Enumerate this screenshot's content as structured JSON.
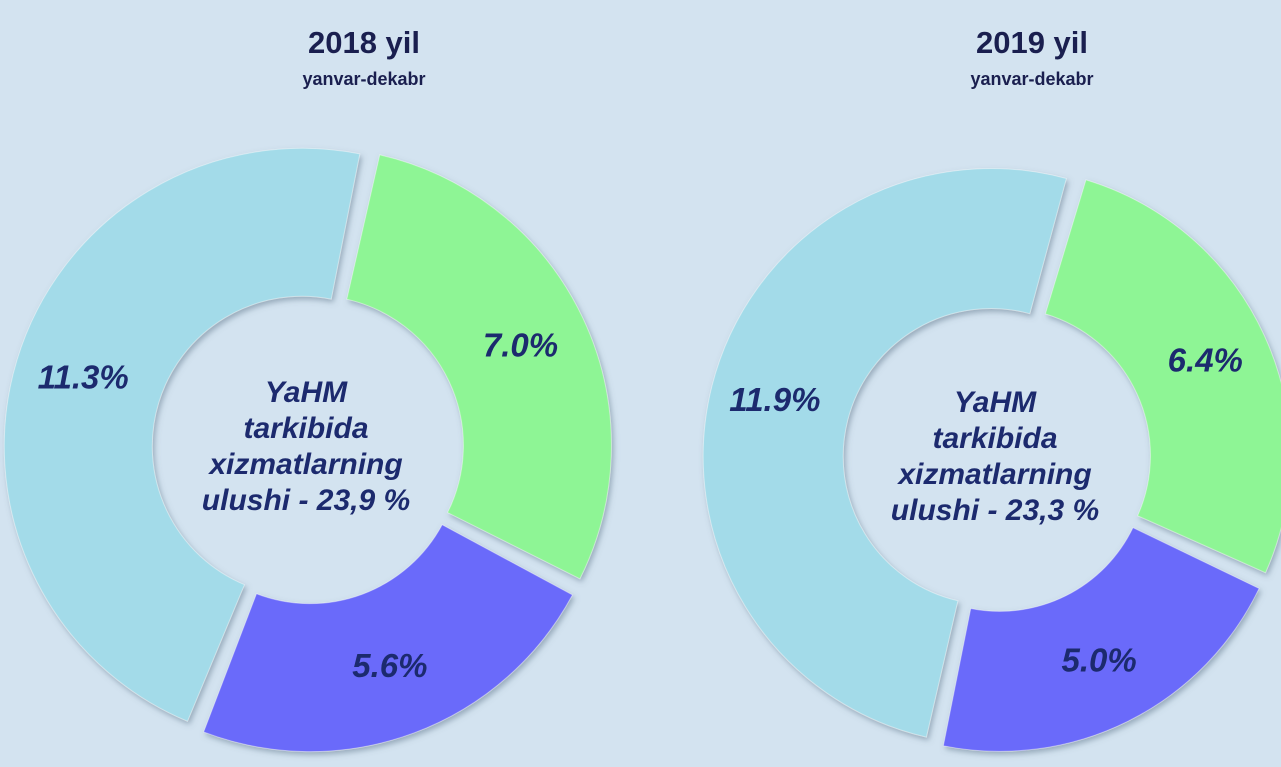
{
  "chart_data": [
    {
      "type": "pie",
      "title": "2018 yil",
      "subtitle": "yanvar-dekabr",
      "values": [
        7.0,
        5.6,
        11.3
      ],
      "value_labels": [
        "7.0%",
        "5.6%",
        "11.3%"
      ],
      "colors": [
        "#8ef595",
        "#6b6bfa",
        "#a3dbe9"
      ],
      "center_text": [
        "YaHM",
        "tarkibida",
        "xizmatlarning",
        "ulushi - 23,9 %"
      ]
    },
    {
      "type": "pie",
      "title": "2019 yil",
      "subtitle": "yanvar-dekabr",
      "values": [
        6.4,
        5.0,
        11.9
      ],
      "value_labels": [
        "6.4%",
        "5.0%",
        "11.9%"
      ],
      "colors": [
        "#8ef595",
        "#6b6bfa",
        "#a3dbe9"
      ],
      "center_text": [
        "YaHM",
        "tarkibida",
        "xizmatlarning",
        "ulushi - 23,3 %"
      ]
    }
  ]
}
